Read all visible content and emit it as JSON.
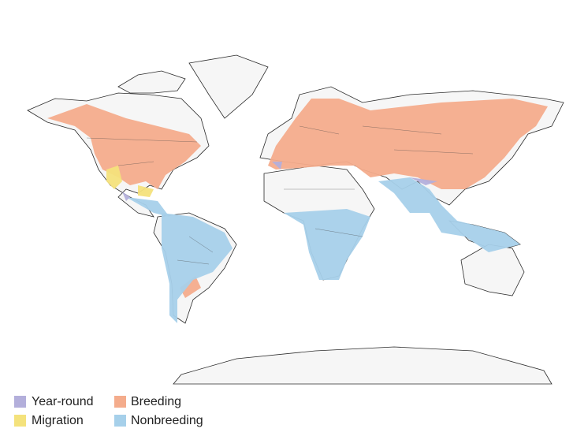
{
  "legend": {
    "items": [
      {
        "label": "Year-round",
        "color": "#b3afdb"
      },
      {
        "label": "Breeding",
        "color": "#f4ac8c"
      },
      {
        "label": "Migration",
        "color": "#f4e27c"
      },
      {
        "label": "Nonbreeding",
        "color": "#a6d0ea"
      }
    ]
  }
}
